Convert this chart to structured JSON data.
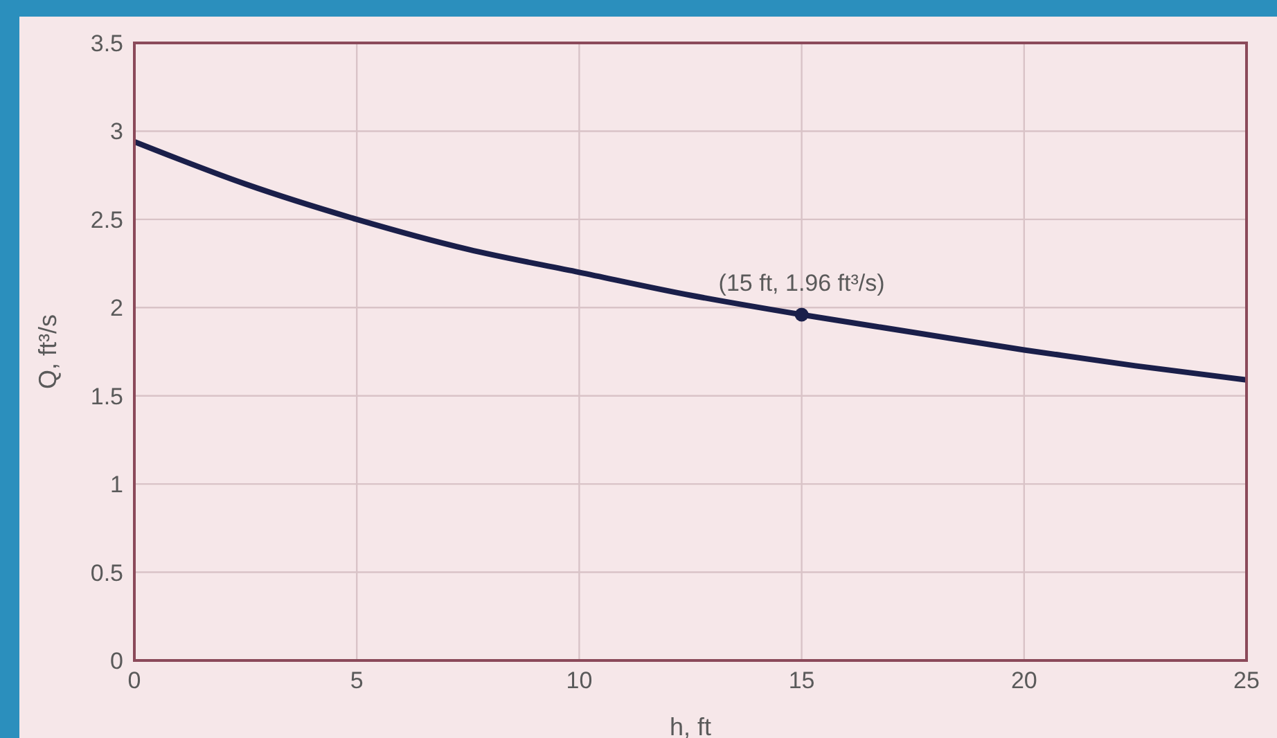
{
  "chart_data": {
    "type": "line",
    "xlabel": "h, ft",
    "ylabel": "Q, ft³/s",
    "x": [
      0,
      2.5,
      5,
      7.5,
      10,
      12.5,
      15,
      17.5,
      20,
      22.5,
      25
    ],
    "series": [
      {
        "color": "#1a1f4a",
        "values": [
          2.94,
          2.7,
          2.5,
          2.33,
          2.2,
          2.07,
          1.96,
          1.86,
          1.76,
          1.67,
          1.59
        ]
      }
    ],
    "annotations": [
      {
        "text": "(15 ft, 1.96 ft³/s)",
        "x": 15,
        "y": 1.96
      }
    ],
    "xlim": [
      0,
      25
    ],
    "xticks": [
      0,
      5,
      10,
      15,
      20,
      25
    ],
    "ylim": [
      0,
      3.5
    ],
    "yticks": [
      0,
      0.5,
      1,
      1.5,
      2,
      2.5,
      3,
      3.5
    ],
    "grid": true,
    "marker": "none",
    "line_style": "solid",
    "legend": false
  }
}
